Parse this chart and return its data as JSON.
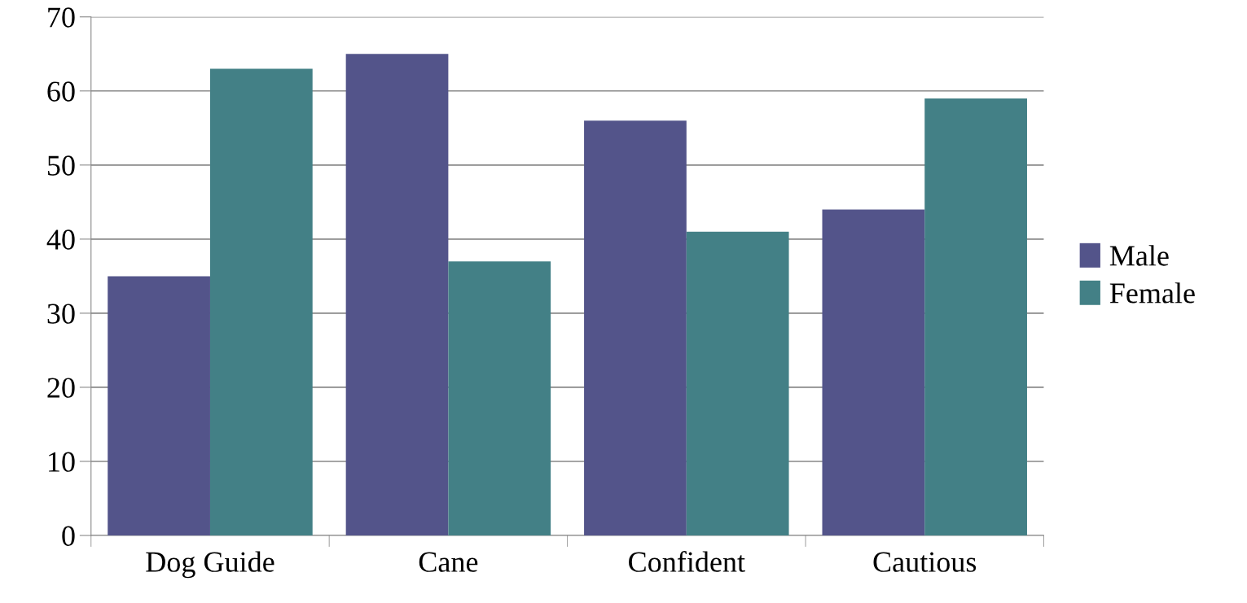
{
  "chart_data": {
    "type": "bar",
    "categories": [
      "Dog Guide",
      "Cane",
      "Confident",
      "Cautious"
    ],
    "series": [
      {
        "name": "Male",
        "color": "#53548a",
        "values": [
          35,
          65,
          56,
          44
        ]
      },
      {
        "name": "Female",
        "color": "#438086",
        "values": [
          63,
          37,
          41,
          59
        ]
      }
    ],
    "ylim": [
      0,
      70
    ],
    "yticks": [
      0,
      10,
      20,
      30,
      40,
      50,
      60,
      70
    ],
    "grid": "y",
    "legend": "right"
  }
}
